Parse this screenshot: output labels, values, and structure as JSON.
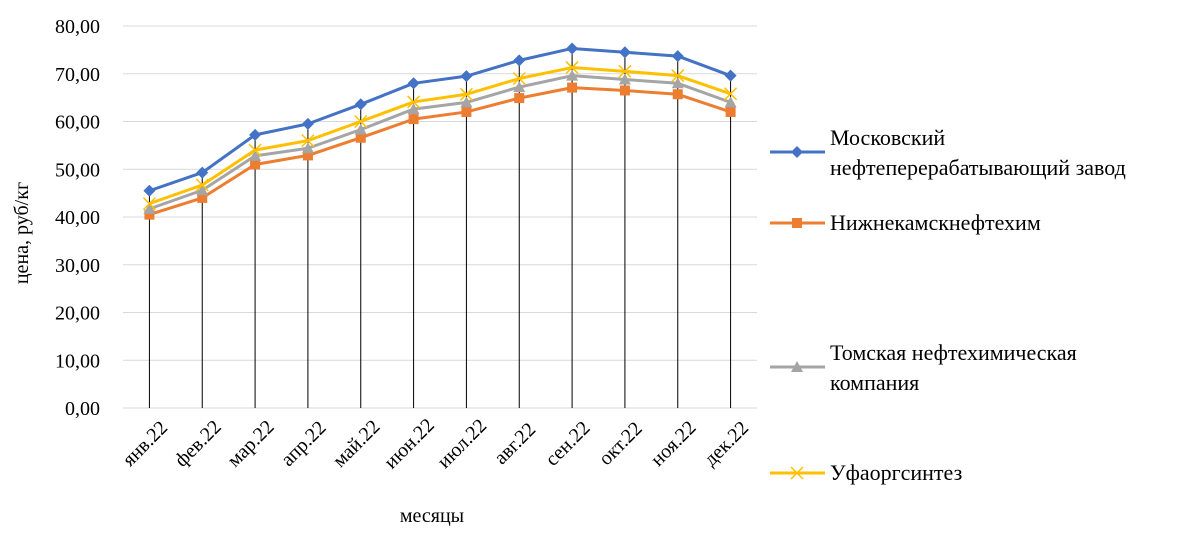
{
  "chart_data": {
    "type": "line",
    "title": "",
    "xlabel": "месяцы",
    "ylabel": "цена, руб/кг",
    "ylim": [
      0,
      80
    ],
    "y_ticks": [
      "0,00",
      "10,00",
      "20,00",
      "30,00",
      "40,00",
      "50,00",
      "60,00",
      "70,00",
      "80,00"
    ],
    "categories": [
      "янв.22",
      "фев.22",
      "мар.22",
      "апр.22",
      "май.22",
      "июн.22",
      "июл.22",
      "авг.22",
      "сен.22",
      "окт.22",
      "ноя.22",
      "дек.22"
    ],
    "grid": "horizontal",
    "drop_lines": true,
    "legend_position": "right",
    "series": [
      {
        "name": "Московский нефтеперерабатывающий завод",
        "legend_lines": [
          "Московский",
          "нефтеперерабатывающий завод"
        ],
        "color": "#4472C4",
        "marker": "diamond",
        "values": [
          45.5,
          49.3,
          57.2,
          59.5,
          63.6,
          68.0,
          69.5,
          72.8,
          75.3,
          74.5,
          73.7,
          69.6
        ]
      },
      {
        "name": "Нижнекамскнефтехим",
        "legend_lines": [
          "Нижнекамскнефтехим"
        ],
        "color": "#ED7D31",
        "marker": "square",
        "values": [
          40.5,
          44.0,
          51.0,
          52.9,
          56.6,
          60.5,
          62.0,
          64.9,
          67.1,
          66.5,
          65.7,
          62.0
        ]
      },
      {
        "name": "Томская нефтехимическая компания",
        "legend_lines": [
          "Томская нефтехимическая",
          "компания"
        ],
        "color": "#A5A5A5",
        "marker": "triangle",
        "values": [
          41.7,
          45.6,
          52.8,
          54.4,
          58.3,
          62.6,
          64.0,
          67.2,
          69.6,
          68.8,
          68.0,
          64.0
        ]
      },
      {
        "name": "Уфаоргсинтез",
        "legend_lines": [
          "Уфаоргсинтез"
        ],
        "color": "#FFC000",
        "marker": "x",
        "values": [
          42.8,
          46.7,
          54.0,
          56.0,
          60.0,
          64.1,
          65.7,
          69.0,
          71.3,
          70.5,
          69.6,
          65.8
        ]
      }
    ]
  }
}
